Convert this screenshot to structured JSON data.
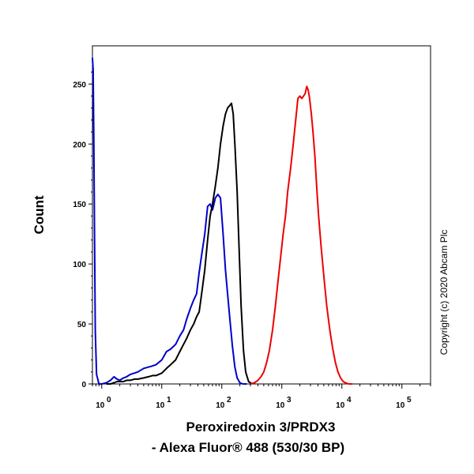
{
  "chart_data": {
    "type": "line",
    "title": "",
    "xlabel_lines": [
      "Peroxiredoxin 3/PRDX3",
      "- Alexa Fluor® 488 (530/30 BP)"
    ],
    "ylabel": "Count",
    "x_scale": "log",
    "xlim": [
      0.7,
      300000
    ],
    "ylim": [
      0,
      270
    ],
    "y_ticks": [
      0,
      50,
      100,
      150,
      200,
      250
    ],
    "y_tick_labels": [
      "0",
      "50",
      "100",
      "150",
      "200",
      "250"
    ],
    "x_ticks": [
      1,
      10,
      100,
      1000,
      10000,
      100000
    ],
    "x_tick_labels": [
      {
        "base": "10",
        "exp": "0"
      },
      {
        "base": "10",
        "exp": "1"
      },
      {
        "base": "10",
        "exp": "2"
      },
      {
        "base": "10",
        "exp": "3"
      },
      {
        "base": "10",
        "exp": "4"
      },
      {
        "base": "10",
        "exp": "5"
      }
    ],
    "grid": false,
    "legend": "none",
    "copyright": "Copyright (c) 2020 Abcam Plc",
    "series": [
      {
        "color": "#0000cc",
        "x": [
          0.7,
          0.72,
          0.74,
          0.76,
          0.78,
          0.82,
          0.9,
          1.0,
          1.2,
          1.4,
          1.6,
          1.8,
          2.0,
          2.3,
          2.6,
          3.0,
          3.5,
          4,
          5,
          6,
          7,
          8,
          10,
          12,
          14,
          17,
          20,
          23,
          26,
          30,
          34,
          38,
          42,
          47,
          52,
          58,
          64,
          70,
          78,
          86,
          95,
          105,
          115,
          125,
          135,
          150,
          165,
          180,
          200,
          225,
          260
        ],
        "values": [
          272,
          262,
          200,
          120,
          45,
          8,
          0,
          0,
          1,
          3,
          6,
          4,
          3,
          5,
          6,
          8,
          9,
          10,
          13,
          14,
          15,
          16,
          20,
          27,
          29,
          33,
          40,
          45,
          54,
          63,
          70,
          75,
          93,
          110,
          125,
          148,
          150,
          145,
          155,
          158,
          155,
          125,
          95,
          75,
          56,
          32,
          14,
          5,
          1,
          0,
          0
        ]
      },
      {
        "color": "#000000",
        "x": [
          1.2,
          1.4,
          1.6,
          1.8,
          2.0,
          2.3,
          2.6,
          3.0,
          3.5,
          4,
          5,
          6,
          7,
          8,
          10,
          12,
          14,
          17,
          20,
          23,
          26,
          30,
          34,
          38,
          42,
          47,
          52,
          58,
          64,
          70,
          78,
          86,
          95,
          105,
          115,
          125,
          135,
          145,
          155,
          165,
          180,
          195,
          210,
          230,
          250,
          280,
          320
        ],
        "values": [
          0,
          0,
          1,
          2,
          2,
          2,
          3,
          3,
          4,
          4,
          5,
          6,
          7,
          7,
          9,
          13,
          16,
          20,
          27,
          33,
          38,
          45,
          50,
          56,
          60,
          78,
          95,
          120,
          140,
          150,
          165,
          180,
          200,
          215,
          225,
          230,
          232,
          234,
          225,
          200,
          160,
          110,
          65,
          28,
          10,
          2,
          0
        ]
      },
      {
        "color": "#ee0000",
        "x": [
          300,
          350,
          400,
          450,
          500,
          560,
          620,
          700,
          780,
          860,
          950,
          1050,
          1150,
          1250,
          1400,
          1550,
          1700,
          1850,
          2000,
          2150,
          2300,
          2450,
          2600,
          2750,
          2900,
          3100,
          3300,
          3550,
          3800,
          4100,
          4500,
          5000,
          5600,
          6300,
          7000,
          7800,
          8600,
          9500,
          10500,
          11500,
          13000,
          15000
        ],
        "values": [
          0,
          1,
          3,
          6,
          10,
          18,
          28,
          45,
          65,
          85,
          105,
          125,
          140,
          160,
          180,
          200,
          220,
          238,
          240,
          238,
          240,
          242,
          248,
          245,
          238,
          225,
          210,
          190,
          165,
          140,
          115,
          90,
          65,
          45,
          30,
          18,
          10,
          5,
          2,
          1,
          0,
          0
        ]
      }
    ]
  }
}
